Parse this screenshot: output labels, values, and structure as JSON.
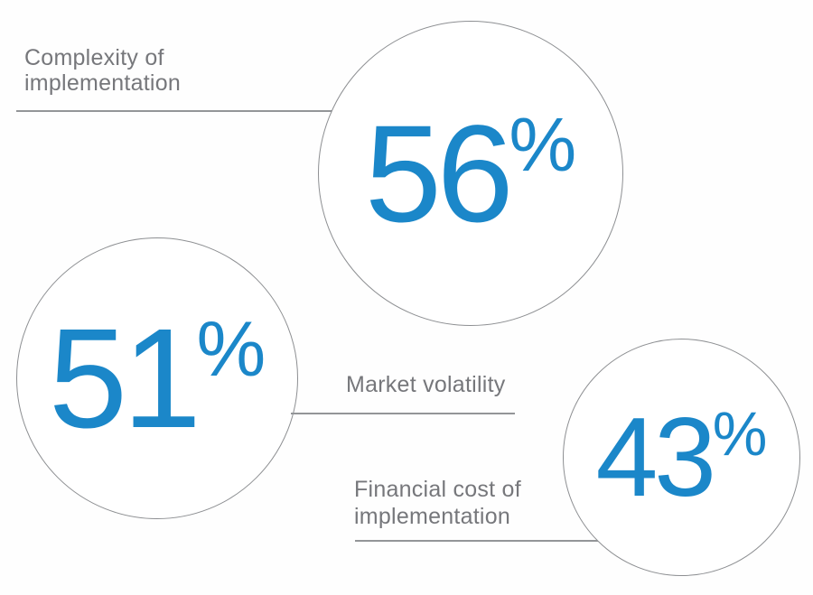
{
  "bubbles": [
    {
      "id": "complexity-of-implementation",
      "value": "56",
      "unit": "%",
      "label_line1": "Complexity of",
      "label_line2": "implementation"
    },
    {
      "id": "market-volatility",
      "value": "51",
      "unit": "%",
      "label": "Market volatility"
    },
    {
      "id": "financial-cost-of-implementation",
      "value": "43",
      "unit": "%",
      "label_line1": "Financial cost of",
      "label_line2": "implementation"
    }
  ],
  "colors": {
    "accent_blue": "#1b87c9",
    "label_gray": "#76777b",
    "leader_line_gray": "#939598",
    "circle_border_gray": "#8d8f92",
    "background": "#ffffff"
  },
  "chart_data": {
    "type": "bubble",
    "title": "",
    "categories": [
      "Complexity of implementation",
      "Market volatility",
      "Financial cost of implementation"
    ],
    "values": [
      56,
      51,
      43
    ],
    "unit": "%",
    "legend": false,
    "layout_hints": {
      "style": "infographic with three outlined circles",
      "value_color": "#1b87c9",
      "label_color": "#76777b",
      "connector": "horizontal leader line from each label to its circle",
      "positions": [
        "top-center circle 56%",
        "middle-left circle 51%",
        "bottom-right circle 43%"
      ]
    }
  }
}
